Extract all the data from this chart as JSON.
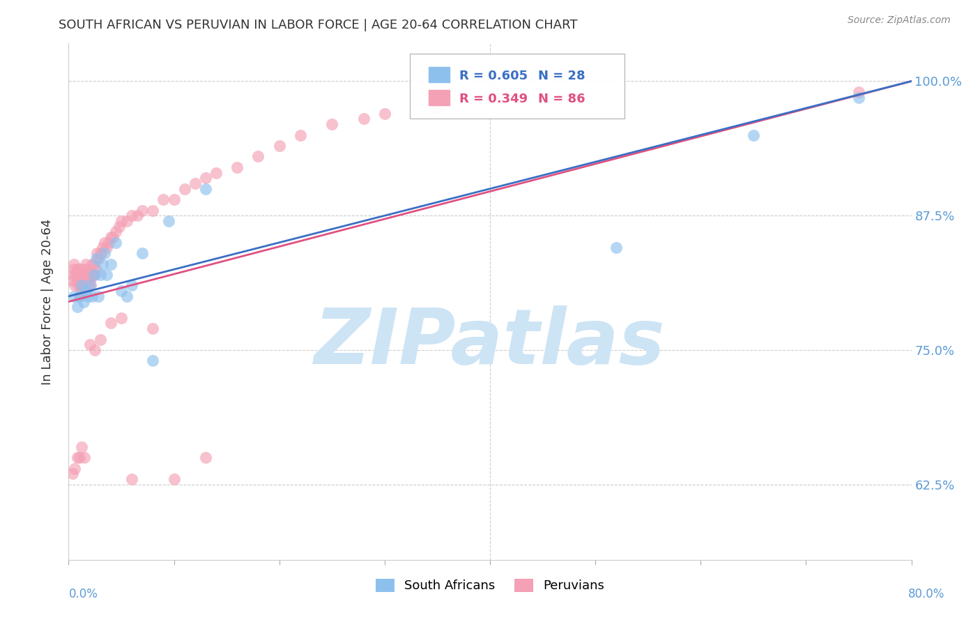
{
  "title": "SOUTH AFRICAN VS PERUVIAN IN LABOR FORCE | AGE 20-64 CORRELATION CHART",
  "source": "Source: ZipAtlas.com",
  "ylabel": "In Labor Force | Age 20-64",
  "ytick_labels": [
    "62.5%",
    "75.0%",
    "87.5%",
    "100.0%"
  ],
  "ytick_values": [
    0.625,
    0.75,
    0.875,
    1.0
  ],
  "xlim": [
    0.0,
    0.8
  ],
  "ylim": [
    0.555,
    1.035
  ],
  "south_african_color": "#8ec0ee",
  "peruvian_color": "#f4a0b5",
  "trend_blue": "#3a6fc4",
  "trend_pink": "#e05080",
  "legend_label_blue": "South Africans",
  "legend_label_pink": "Peruvians",
  "grid_color": "#cccccc",
  "title_color": "#333333",
  "axis_label_color": "#333333",
  "ytick_color": "#5b9bd5",
  "watermark": "ZIPatlas",
  "watermark_color": "#cde4f5",
  "sa_x": [
    0.005,
    0.008,
    0.01,
    0.012,
    0.014,
    0.016,
    0.018,
    0.02,
    0.022,
    0.024,
    0.026,
    0.028,
    0.03,
    0.032,
    0.034,
    0.036,
    0.04,
    0.045,
    0.05,
    0.055,
    0.06,
    0.07,
    0.08,
    0.095,
    0.13,
    0.52,
    0.65,
    0.75
  ],
  "sa_y": [
    0.8,
    0.79,
    0.8,
    0.81,
    0.795,
    0.805,
    0.8,
    0.81,
    0.8,
    0.82,
    0.835,
    0.8,
    0.82,
    0.83,
    0.84,
    0.82,
    0.83,
    0.85,
    0.805,
    0.8,
    0.81,
    0.84,
    0.74,
    0.87,
    0.9,
    0.845,
    0.95,
    0.985
  ],
  "pe_x": [
    0.003,
    0.004,
    0.005,
    0.005,
    0.006,
    0.007,
    0.008,
    0.008,
    0.009,
    0.009,
    0.01,
    0.01,
    0.01,
    0.011,
    0.011,
    0.012,
    0.012,
    0.013,
    0.013,
    0.014,
    0.015,
    0.015,
    0.016,
    0.016,
    0.017,
    0.017,
    0.018,
    0.018,
    0.019,
    0.02,
    0.02,
    0.021,
    0.022,
    0.022,
    0.023,
    0.024,
    0.025,
    0.026,
    0.027,
    0.028,
    0.03,
    0.031,
    0.032,
    0.034,
    0.036,
    0.038,
    0.04,
    0.042,
    0.045,
    0.048,
    0.05,
    0.055,
    0.06,
    0.065,
    0.07,
    0.08,
    0.09,
    0.1,
    0.11,
    0.12,
    0.13,
    0.14,
    0.16,
    0.18,
    0.2,
    0.22,
    0.25,
    0.28,
    0.3,
    0.35,
    0.004,
    0.006,
    0.008,
    0.01,
    0.012,
    0.015,
    0.02,
    0.025,
    0.03,
    0.04,
    0.05,
    0.06,
    0.08,
    0.1,
    0.13,
    0.75
  ],
  "pe_y": [
    0.815,
    0.82,
    0.825,
    0.83,
    0.81,
    0.82,
    0.815,
    0.825,
    0.81,
    0.82,
    0.8,
    0.815,
    0.825,
    0.81,
    0.82,
    0.805,
    0.815,
    0.81,
    0.82,
    0.81,
    0.82,
    0.825,
    0.82,
    0.83,
    0.815,
    0.825,
    0.815,
    0.82,
    0.81,
    0.815,
    0.82,
    0.81,
    0.82,
    0.83,
    0.82,
    0.83,
    0.82,
    0.825,
    0.84,
    0.835,
    0.84,
    0.84,
    0.845,
    0.85,
    0.845,
    0.85,
    0.855,
    0.855,
    0.86,
    0.865,
    0.87,
    0.87,
    0.875,
    0.875,
    0.88,
    0.88,
    0.89,
    0.89,
    0.9,
    0.905,
    0.91,
    0.915,
    0.92,
    0.93,
    0.94,
    0.95,
    0.96,
    0.965,
    0.97,
    0.975,
    0.635,
    0.64,
    0.65,
    0.65,
    0.66,
    0.65,
    0.755,
    0.75,
    0.76,
    0.775,
    0.78,
    0.63,
    0.77,
    0.63,
    0.65,
    0.99
  ],
  "trend_sa_x0": 0.0,
  "trend_sa_y0": 0.8,
  "trend_sa_x1": 0.8,
  "trend_sa_y1": 1.0,
  "trend_pe_x0": 0.0,
  "trend_pe_y0": 0.795,
  "trend_pe_x1": 0.8,
  "trend_pe_y1": 1.0
}
